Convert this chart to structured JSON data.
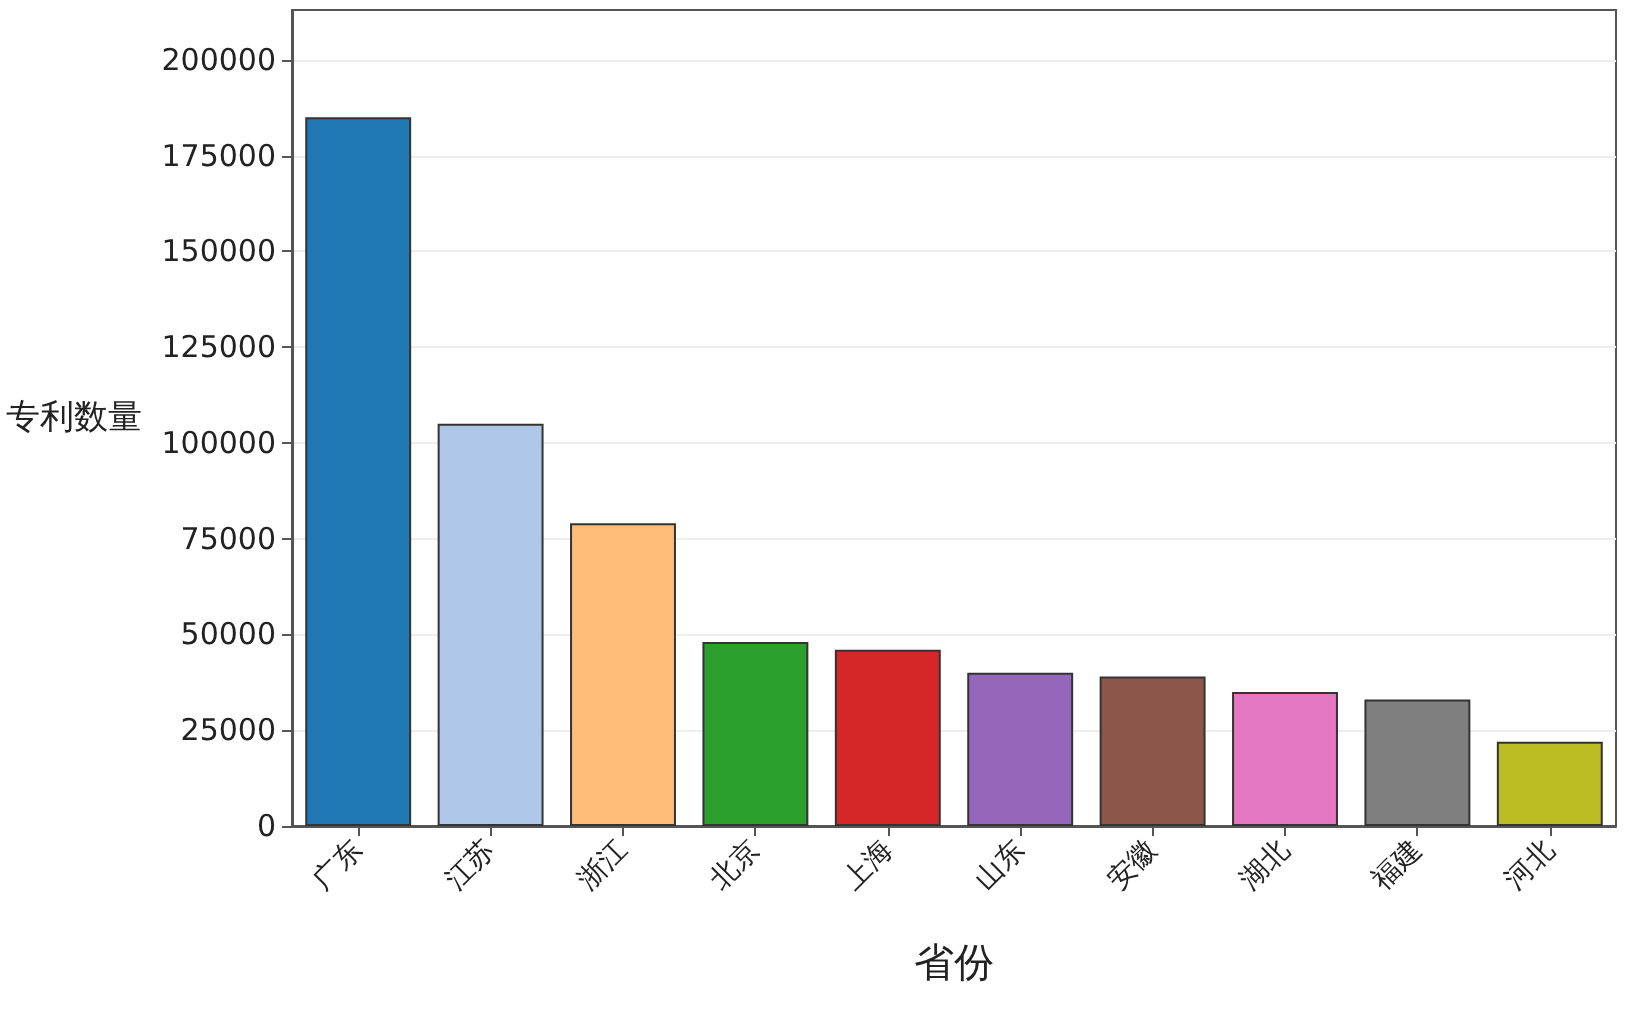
{
  "chart_data": {
    "type": "bar",
    "xlabel": "省份",
    "ylabel": "专利数量",
    "categories": [
      "广东",
      "江苏",
      "浙江",
      "北京",
      "上海",
      "山东",
      "安徽",
      "湖北",
      "福建",
      "河北"
    ],
    "values": [
      185000,
      105000,
      79000,
      48000,
      46000,
      40000,
      39000,
      35000,
      33000,
      22000
    ],
    "colors": [
      "#1f77b4",
      "#aec7e8",
      "#ffbb78",
      "#2ca02c",
      "#d62728",
      "#9467bd",
      "#8c564b",
      "#e377c2",
      "#7f7f7f",
      "#bcbd22"
    ],
    "ylim": [
      0,
      213000
    ],
    "yticks": [
      0,
      25000,
      50000,
      75000,
      100000,
      125000,
      150000,
      175000,
      200000
    ],
    "grid": "y"
  }
}
